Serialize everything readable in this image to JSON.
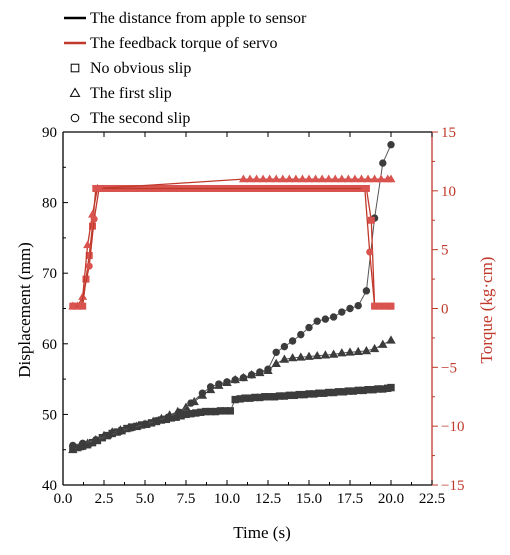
{
  "chart_data": {
    "type": "line",
    "xlabel": "Time (s)",
    "ylabel": "Displacement (mm)",
    "y2label": "Torque (kg·cm)",
    "xlim": [
      0,
      22.5
    ],
    "ylim": [
      40,
      90
    ],
    "y2lim": [
      -15,
      15
    ],
    "xticks": [
      "0.0",
      "2.5",
      "5.0",
      "7.5",
      "10.0",
      "12.5",
      "15.0",
      "17.5",
      "20.0",
      "22.5"
    ],
    "xtick_values": [
      0,
      2.5,
      5,
      7.5,
      10,
      12.5,
      15,
      17.5,
      20,
      22.5
    ],
    "yticks": [
      "40",
      "50",
      "60",
      "70",
      "80",
      "90"
    ],
    "ytick_values": [
      40,
      50,
      60,
      70,
      80,
      90
    ],
    "y2ticks": [
      "15",
      "10",
      "5",
      "0",
      "−5",
      "−10",
      "−15"
    ],
    "y2tick_values": [
      15,
      10,
      5,
      0,
      -5,
      -10,
      -15
    ],
    "grid": false,
    "legend": {
      "placement": "top-left",
      "lines": [
        {
          "label": "The distance from apple to sensor",
          "color": "#000000"
        },
        {
          "label": "The feedback torque of servo",
          "color": "#c0392b"
        }
      ],
      "markers": [
        {
          "label": "No obvious slip",
          "marker": "square"
        },
        {
          "label": "The first slip",
          "marker": "triangle"
        },
        {
          "label": "The second slip",
          "marker": "circle"
        }
      ]
    },
    "colors": {
      "displacement": "#3c3c3c",
      "torque": "#c0392b",
      "torque_marker": "#d9534f",
      "right_axis": "#c0392b"
    },
    "series": [
      {
        "name": "No obvious slip",
        "axis": "left",
        "kind": "displacement",
        "marker": "square",
        "x": [
          0.6,
          0.9,
          1.2,
          1.5,
          1.8,
          2.1,
          2.4,
          2.7,
          3.0,
          3.3,
          3.6,
          3.9,
          4.2,
          4.5,
          4.8,
          5.1,
          5.4,
          5.7,
          6.0,
          6.3,
          6.6,
          6.9,
          7.2,
          7.5,
          7.8,
          8.1,
          8.4,
          8.7,
          9.0,
          9.3,
          9.6,
          9.9,
          10.2,
          10.5,
          10.8,
          11.1,
          11.4,
          11.7,
          12.0,
          12.3,
          12.6,
          12.9,
          13.2,
          13.5,
          13.8,
          14.1,
          14.4,
          14.7,
          15.0,
          15.3,
          15.6,
          15.9,
          16.2,
          16.5,
          16.8,
          17.1,
          17.4,
          17.7,
          18.0,
          18.3,
          18.6,
          18.9,
          19.2,
          19.5,
          19.8,
          20.0
        ],
        "y": [
          45.2,
          45.3,
          45.5,
          45.7,
          46.0,
          46.3,
          46.7,
          47.0,
          47.3,
          47.5,
          47.7,
          48.0,
          48.2,
          48.3,
          48.5,
          48.6,
          48.8,
          49.0,
          49.2,
          49.3,
          49.5,
          49.6,
          49.8,
          50.0,
          50.1,
          50.2,
          50.3,
          50.4,
          50.4,
          50.4,
          50.5,
          50.5,
          50.5,
          52.1,
          52.2,
          52.3,
          52.3,
          52.4,
          52.4,
          52.5,
          52.5,
          52.5,
          52.6,
          52.6,
          52.7,
          52.7,
          52.8,
          52.8,
          52.9,
          52.9,
          53.0,
          53.0,
          53.1,
          53.1,
          53.2,
          53.2,
          53.3,
          53.3,
          53.4,
          53.4,
          53.5,
          53.5,
          53.6,
          53.6,
          53.7,
          53.8
        ]
      },
      {
        "name": "The first slip",
        "axis": "left",
        "kind": "displacement",
        "marker": "triangle",
        "x": [
          0.6,
          1.0,
          1.5,
          2.0,
          2.5,
          3.0,
          3.5,
          4.0,
          4.5,
          5.0,
          5.5,
          6.0,
          6.5,
          7.0,
          7.5,
          8.0,
          8.5,
          9.0,
          9.5,
          10.0,
          10.5,
          11.0,
          11.5,
          12.0,
          12.5,
          13.0,
          13.5,
          14.0,
          14.5,
          15.0,
          15.5,
          16.0,
          16.5,
          17.0,
          17.5,
          18.0,
          18.5,
          19.0,
          19.5,
          20.0
        ],
        "y": [
          45.0,
          45.4,
          45.9,
          46.4,
          47.0,
          47.5,
          47.8,
          48.1,
          48.3,
          48.6,
          49.0,
          49.4,
          49.9,
          50.4,
          51.0,
          51.8,
          52.7,
          53.5,
          54.1,
          54.5,
          54.9,
          55.2,
          55.6,
          55.9,
          56.2,
          57.2,
          57.8,
          58.0,
          58.1,
          58.2,
          58.3,
          58.4,
          58.5,
          58.7,
          58.8,
          58.9,
          59.0,
          59.3,
          59.9,
          60.5
        ]
      },
      {
        "name": "The second slip",
        "axis": "left",
        "kind": "displacement",
        "marker": "circle",
        "x": [
          0.6,
          1.2,
          2.0,
          2.8,
          3.5,
          4.2,
          5.0,
          5.7,
          6.4,
          7.1,
          7.8,
          8.5,
          9.0,
          9.5,
          10.0,
          10.5,
          11.0,
          11.5,
          12.0,
          12.5,
          13.0,
          13.5,
          14.0,
          14.5,
          15.0,
          15.5,
          16.0,
          16.5,
          17.0,
          17.5,
          18.0,
          18.5,
          19.0,
          19.5,
          20.0
        ],
        "y": [
          45.6,
          45.9,
          46.4,
          47.0,
          47.6,
          48.1,
          48.6,
          49.1,
          49.6,
          50.3,
          51.6,
          53.0,
          53.9,
          54.3,
          54.6,
          54.9,
          55.2,
          55.6,
          56.0,
          56.4,
          58.8,
          59.6,
          60.4,
          61.3,
          62.3,
          63.2,
          63.5,
          63.8,
          64.5,
          65.0,
          65.4,
          67.5,
          77.8,
          85.6,
          88.2
        ]
      },
      {
        "name": "The feedback torque of servo",
        "axis": "right",
        "kind": "torque",
        "marker": "square",
        "x": [
          0.6,
          0.9,
          1.2,
          1.4,
          1.6,
          1.8,
          2.0,
          2.3,
          2.6,
          2.9,
          3.2,
          3.5,
          3.8,
          4.1,
          4.4,
          4.7,
          5.0,
          5.3,
          5.6,
          5.9,
          6.2,
          6.5,
          6.8,
          7.1,
          7.4,
          7.7,
          8.0,
          8.3,
          8.6,
          8.9,
          9.2,
          9.5,
          9.8,
          10.1,
          10.4,
          10.7,
          11.0,
          11.3,
          11.6,
          11.9,
          12.2,
          12.5,
          12.8,
          13.1,
          13.4,
          13.7,
          14.0,
          14.3,
          14.6,
          14.9,
          15.2,
          15.5,
          15.8,
          16.1,
          16.4,
          16.7,
          17.0,
          17.3,
          17.6,
          17.9,
          18.2,
          18.5,
          18.8,
          19.0,
          19.3,
          19.6,
          19.9,
          20.0
        ],
        "y": [
          0.2,
          0.2,
          0.2,
          2.5,
          4.5,
          7.0,
          10.2,
          10.2,
          10.2,
          10.2,
          10.2,
          10.2,
          10.2,
          10.2,
          10.2,
          10.2,
          10.2,
          10.2,
          10.2,
          10.2,
          10.2,
          10.2,
          10.2,
          10.2,
          10.2,
          10.2,
          10.2,
          10.2,
          10.2,
          10.2,
          10.2,
          10.2,
          10.2,
          10.2,
          10.2,
          10.2,
          10.2,
          10.2,
          10.2,
          10.2,
          10.2,
          10.2,
          10.2,
          10.2,
          10.2,
          10.2,
          10.2,
          10.2,
          10.2,
          10.2,
          10.2,
          10.2,
          10.2,
          10.2,
          10.2,
          10.2,
          10.2,
          10.2,
          10.2,
          10.2,
          10.2,
          10.2,
          7.5,
          0.2,
          0.2,
          0.2,
          0.2,
          0.2
        ]
      },
      {
        "name": "The feedback torque of servo",
        "axis": "right",
        "kind": "torque",
        "marker": "triangle",
        "x": [
          0.6,
          0.9,
          1.2,
          1.5,
          1.8,
          2.1,
          11.0,
          11.4,
          11.8,
          12.2,
          12.6,
          13.0,
          13.4,
          13.8,
          14.2,
          14.6,
          15.0,
          15.4,
          15.8,
          16.2,
          16.6,
          17.0,
          17.4,
          17.8,
          18.2,
          18.6,
          19.0,
          19.4,
          19.8,
          20.0
        ],
        "y": [
          0.2,
          0.2,
          1.0,
          5.4,
          8.0,
          10.2,
          11.0,
          11.0,
          11.0,
          11.0,
          11.0,
          11.0,
          11.0,
          11.0,
          11.0,
          11.0,
          11.0,
          11.0,
          11.0,
          11.0,
          11.0,
          11.0,
          11.0,
          11.0,
          11.0,
          11.0,
          11.0,
          11.0,
          11.0,
          11.0
        ]
      },
      {
        "name": "The feedback torque of servo",
        "axis": "right",
        "kind": "torque",
        "marker": "circle",
        "x": [
          0.6,
          1.1,
          1.6,
          1.9,
          2.2,
          18.4,
          18.7,
          19.0,
          19.3,
          19.6,
          19.9
        ],
        "y": [
          0.2,
          0.2,
          3.6,
          7.6,
          10.2,
          10.2,
          4.8,
          0.2,
          0.2,
          0.2,
          0.2
        ]
      }
    ]
  }
}
